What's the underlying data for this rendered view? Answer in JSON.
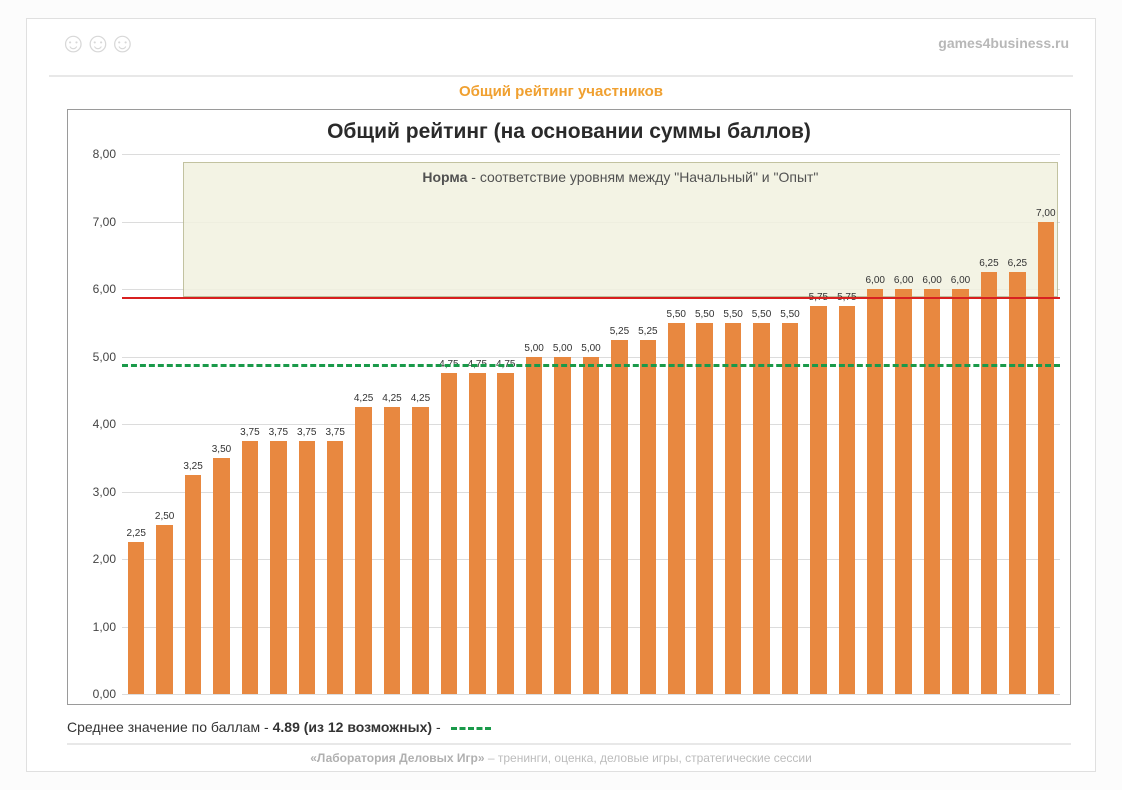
{
  "header": {
    "site": "games4business.ru",
    "page_title": "Общий рейтинг участников"
  },
  "chart": {
    "type": "bar",
    "title": "Общий рейтинг (на основании суммы баллов)",
    "values": [
      2.25,
      2.5,
      3.25,
      3.5,
      3.75,
      3.75,
      3.75,
      3.75,
      4.25,
      4.25,
      4.25,
      4.75,
      4.75,
      4.75,
      5.0,
      5.0,
      5.0,
      5.25,
      5.25,
      5.5,
      5.5,
      5.5,
      5.5,
      5.5,
      5.75,
      5.75,
      6.0,
      6.0,
      6.0,
      6.0,
      6.25,
      6.25,
      7.0
    ],
    "labels": [
      "2,25",
      "2,50",
      "3,25",
      "3,50",
      "3,75",
      "3,75",
      "3,75",
      "3,75",
      "4,25",
      "4,25",
      "4,25",
      "4,75",
      "4,75",
      "4,75",
      "5,00",
      "5,00",
      "5,00",
      "5,25",
      "5,25",
      "5,50",
      "5,50",
      "5,50",
      "5,50",
      "5,50",
      "5,75",
      "5,75",
      "6,00",
      "6,00",
      "6,00",
      "6,00",
      "6,25",
      "6,25",
      "7,00"
    ],
    "y": {
      "min": 0.0,
      "max": 8.0,
      "step": 1.0,
      "tick_labels": [
        "0,00",
        "1,00",
        "2,00",
        "3,00",
        "4,00",
        "5,00",
        "6,00",
        "7,00",
        "8,00"
      ]
    },
    "bar_color": "#e88840",
    "bar_width_ratio": 0.58,
    "grid_color": "#dcdcdc",
    "background_color": "#ffffff",
    "value_label_fontsize": 10,
    "title_fontsize": 21,
    "ref_lines": {
      "red": {
        "value": 5.88,
        "color": "#d82020",
        "style": "solid",
        "width": 2
      },
      "green_dashed": {
        "value": 4.89,
        "color": "#1a9a4a",
        "style": "dashed",
        "width": 3
      }
    },
    "norm_band": {
      "x_start_index": 2,
      "top_value": 7.88,
      "bottom_value": 5.88,
      "fill": "#f2f2e0",
      "border": "#b8b890",
      "label_bold": "Норма",
      "label_rest": " - соответствие уровням между \"Начальный\" и \"Опыт\""
    }
  },
  "footer": {
    "note_prefix": "Среднее значение по баллам - ",
    "note_value": "4.89 (из 12 возможных)",
    "note_suffix": " - ",
    "credit_bold": "«Лаборатория Деловых Игр»",
    "credit_rest": " – тренинги, оценка, деловые игры, стратегические сессии"
  }
}
